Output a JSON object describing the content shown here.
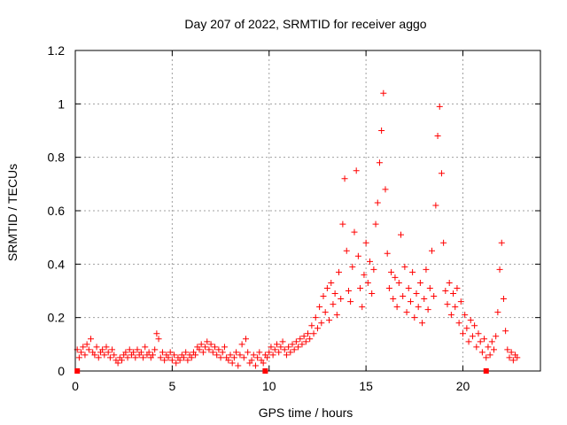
{
  "chart_data": {
    "type": "scatter",
    "title": "Day 207 of 2022, SRMTID for receiver aggo",
    "xlabel": "GPS time / hours",
    "ylabel": "SRMTID / TECUs",
    "xlim": [
      0,
      24
    ],
    "ylim": [
      0,
      1.2
    ],
    "xticks": [
      0,
      5,
      10,
      15,
      20
    ],
    "yticks": [
      0,
      0.2,
      0.4,
      0.6,
      0.8,
      1,
      1.2
    ],
    "xtick_labels": [
      "0",
      "5",
      "10",
      "15",
      "20"
    ],
    "ytick_labels": [
      "0",
      "0.2",
      "0.4",
      "0.6",
      "0.8",
      "1",
      "1.2"
    ],
    "grid": true,
    "marker": "+",
    "color": "#ff0000",
    "gap_marker_color": "#ff0000",
    "gap_markers_x": [
      0.1,
      9.8,
      21.2
    ],
    "series": [
      {
        "name": "SRMTID",
        "points": [
          [
            0.1,
            0.08
          ],
          [
            0.2,
            0.05
          ],
          [
            0.3,
            0.07
          ],
          [
            0.4,
            0.09
          ],
          [
            0.5,
            0.06
          ],
          [
            0.6,
            0.1
          ],
          [
            0.7,
            0.08
          ],
          [
            0.8,
            0.12
          ],
          [
            0.9,
            0.07
          ],
          [
            1.0,
            0.06
          ],
          [
            1.1,
            0.09
          ],
          [
            1.2,
            0.05
          ],
          [
            1.3,
            0.07
          ],
          [
            1.4,
            0.08
          ],
          [
            1.5,
            0.06
          ],
          [
            1.6,
            0.09
          ],
          [
            1.7,
            0.07
          ],
          [
            1.8,
            0.05
          ],
          [
            1.9,
            0.08
          ],
          [
            2.0,
            0.06
          ],
          [
            2.1,
            0.04
          ],
          [
            2.2,
            0.03
          ],
          [
            2.3,
            0.05
          ],
          [
            2.4,
            0.04
          ],
          [
            2.5,
            0.06
          ],
          [
            2.6,
            0.07
          ],
          [
            2.7,
            0.05
          ],
          [
            2.8,
            0.08
          ],
          [
            2.9,
            0.06
          ],
          [
            3.0,
            0.07
          ],
          [
            3.1,
            0.05
          ],
          [
            3.2,
            0.08
          ],
          [
            3.3,
            0.06
          ],
          [
            3.4,
            0.07
          ],
          [
            3.5,
            0.05
          ],
          [
            3.6,
            0.09
          ],
          [
            3.7,
            0.06
          ],
          [
            3.8,
            0.07
          ],
          [
            3.9,
            0.05
          ],
          [
            4.0,
            0.06
          ],
          [
            4.1,
            0.08
          ],
          [
            4.2,
            0.14
          ],
          [
            4.3,
            0.12
          ],
          [
            4.4,
            0.05
          ],
          [
            4.5,
            0.07
          ],
          [
            4.6,
            0.04
          ],
          [
            4.7,
            0.06
          ],
          [
            4.8,
            0.05
          ],
          [
            4.9,
            0.07
          ],
          [
            5.0,
            0.04
          ],
          [
            5.1,
            0.06
          ],
          [
            5.2,
            0.03
          ],
          [
            5.3,
            0.05
          ],
          [
            5.4,
            0.04
          ],
          [
            5.5,
            0.06
          ],
          [
            5.6,
            0.05
          ],
          [
            5.7,
            0.07
          ],
          [
            5.8,
            0.04
          ],
          [
            5.9,
            0.06
          ],
          [
            6.0,
            0.05
          ],
          [
            6.1,
            0.07
          ],
          [
            6.2,
            0.06
          ],
          [
            6.3,
            0.09
          ],
          [
            6.4,
            0.08
          ],
          [
            6.5,
            0.1
          ],
          [
            6.6,
            0.07
          ],
          [
            6.7,
            0.09
          ],
          [
            6.8,
            0.11
          ],
          [
            6.9,
            0.08
          ],
          [
            7.0,
            0.1
          ],
          [
            7.1,
            0.07
          ],
          [
            7.2,
            0.09
          ],
          [
            7.3,
            0.06
          ],
          [
            7.4,
            0.08
          ],
          [
            7.5,
            0.05
          ],
          [
            7.6,
            0.07
          ],
          [
            7.7,
            0.09
          ],
          [
            7.8,
            0.05
          ],
          [
            7.9,
            0.04
          ],
          [
            8.0,
            0.06
          ],
          [
            8.1,
            0.03
          ],
          [
            8.2,
            0.05
          ],
          [
            8.3,
            0.07
          ],
          [
            8.4,
            0.02
          ],
          [
            8.5,
            0.06
          ],
          [
            8.6,
            0.1
          ],
          [
            8.7,
            0.05
          ],
          [
            8.8,
            0.12
          ],
          [
            8.9,
            0.07
          ],
          [
            9.0,
            0.03
          ],
          [
            9.1,
            0.04
          ],
          [
            9.2,
            0.06
          ],
          [
            9.3,
            0.02
          ],
          [
            9.4,
            0.05
          ],
          [
            9.5,
            0.07
          ],
          [
            9.6,
            0.04
          ],
          [
            9.7,
            0.03
          ],
          [
            9.8,
            0.06
          ],
          [
            9.9,
            0.05
          ],
          [
            10.0,
            0.07
          ],
          [
            10.1,
            0.09
          ],
          [
            10.2,
            0.06
          ],
          [
            10.3,
            0.08
          ],
          [
            10.4,
            0.1
          ],
          [
            10.5,
            0.07
          ],
          [
            10.6,
            0.09
          ],
          [
            10.7,
            0.11
          ],
          [
            10.8,
            0.08
          ],
          [
            10.9,
            0.06
          ],
          [
            11.0,
            0.09
          ],
          [
            11.1,
            0.07
          ],
          [
            11.2,
            0.1
          ],
          [
            11.3,
            0.08
          ],
          [
            11.4,
            0.11
          ],
          [
            11.5,
            0.09
          ],
          [
            11.6,
            0.12
          ],
          [
            11.7,
            0.1
          ],
          [
            11.8,
            0.13
          ],
          [
            11.9,
            0.11
          ],
          [
            12.0,
            0.14
          ],
          [
            12.1,
            0.12
          ],
          [
            12.2,
            0.17
          ],
          [
            12.3,
            0.14
          ],
          [
            12.4,
            0.2
          ],
          [
            12.5,
            0.16
          ],
          [
            12.6,
            0.24
          ],
          [
            12.7,
            0.18
          ],
          [
            12.8,
            0.28
          ],
          [
            12.9,
            0.22
          ],
          [
            13.0,
            0.31
          ],
          [
            13.1,
            0.19
          ],
          [
            13.2,
            0.33
          ],
          [
            13.3,
            0.25
          ],
          [
            13.4,
            0.29
          ],
          [
            13.5,
            0.21
          ],
          [
            13.6,
            0.37
          ],
          [
            13.7,
            0.27
          ],
          [
            13.8,
            0.55
          ],
          [
            13.9,
            0.72
          ],
          [
            14.0,
            0.45
          ],
          [
            14.1,
            0.3
          ],
          [
            14.2,
            0.26
          ],
          [
            14.3,
            0.39
          ],
          [
            14.4,
            0.52
          ],
          [
            14.5,
            0.75
          ],
          [
            14.6,
            0.43
          ],
          [
            14.7,
            0.31
          ],
          [
            14.8,
            0.24
          ],
          [
            14.9,
            0.36
          ],
          [
            15.0,
            0.48
          ],
          [
            15.1,
            0.33
          ],
          [
            15.2,
            0.41
          ],
          [
            15.3,
            0.29
          ],
          [
            15.4,
            0.38
          ],
          [
            15.5,
            0.55
          ],
          [
            15.6,
            0.63
          ],
          [
            15.7,
            0.78
          ],
          [
            15.8,
            0.9
          ],
          [
            15.9,
            1.04
          ],
          [
            16.0,
            0.68
          ],
          [
            16.1,
            0.44
          ],
          [
            16.2,
            0.31
          ],
          [
            16.3,
            0.37
          ],
          [
            16.4,
            0.27
          ],
          [
            16.5,
            0.35
          ],
          [
            16.6,
            0.24
          ],
          [
            16.7,
            0.33
          ],
          [
            16.8,
            0.51
          ],
          [
            16.9,
            0.28
          ],
          [
            17.0,
            0.39
          ],
          [
            17.1,
            0.22
          ],
          [
            17.2,
            0.31
          ],
          [
            17.3,
            0.26
          ],
          [
            17.4,
            0.37
          ],
          [
            17.5,
            0.2
          ],
          [
            17.6,
            0.29
          ],
          [
            17.7,
            0.24
          ],
          [
            17.8,
            0.33
          ],
          [
            17.9,
            0.18
          ],
          [
            18.0,
            0.27
          ],
          [
            18.1,
            0.38
          ],
          [
            18.2,
            0.23
          ],
          [
            18.3,
            0.31
          ],
          [
            18.4,
            0.45
          ],
          [
            18.5,
            0.28
          ],
          [
            18.6,
            0.62
          ],
          [
            18.7,
            0.88
          ],
          [
            18.8,
            0.99
          ],
          [
            18.9,
            0.74
          ],
          [
            19.0,
            0.48
          ],
          [
            19.1,
            0.3
          ],
          [
            19.2,
            0.25
          ],
          [
            19.3,
            0.33
          ],
          [
            19.4,
            0.21
          ],
          [
            19.5,
            0.29
          ],
          [
            19.6,
            0.24
          ],
          [
            19.7,
            0.31
          ],
          [
            19.8,
            0.18
          ],
          [
            19.9,
            0.26
          ],
          [
            20.0,
            0.14
          ],
          [
            20.1,
            0.21
          ],
          [
            20.2,
            0.16
          ],
          [
            20.3,
            0.11
          ],
          [
            20.4,
            0.19
          ],
          [
            20.5,
            0.13
          ],
          [
            20.6,
            0.17
          ],
          [
            20.7,
            0.09
          ],
          [
            20.8,
            0.14
          ],
          [
            20.9,
            0.11
          ],
          [
            21.0,
            0.07
          ],
          [
            21.1,
            0.12
          ],
          [
            21.2,
            0.05
          ],
          [
            21.3,
            0.09
          ],
          [
            21.4,
            0.06
          ],
          [
            21.5,
            0.11
          ],
          [
            21.6,
            0.08
          ],
          [
            21.7,
            0.13
          ],
          [
            21.8,
            0.22
          ],
          [
            21.9,
            0.38
          ],
          [
            22.0,
            0.48
          ],
          [
            22.1,
            0.27
          ],
          [
            22.2,
            0.15
          ],
          [
            22.3,
            0.08
          ],
          [
            22.4,
            0.05
          ],
          [
            22.5,
            0.07
          ],
          [
            22.6,
            0.04
          ],
          [
            22.7,
            0.06
          ],
          [
            22.8,
            0.05
          ]
        ]
      }
    ]
  }
}
